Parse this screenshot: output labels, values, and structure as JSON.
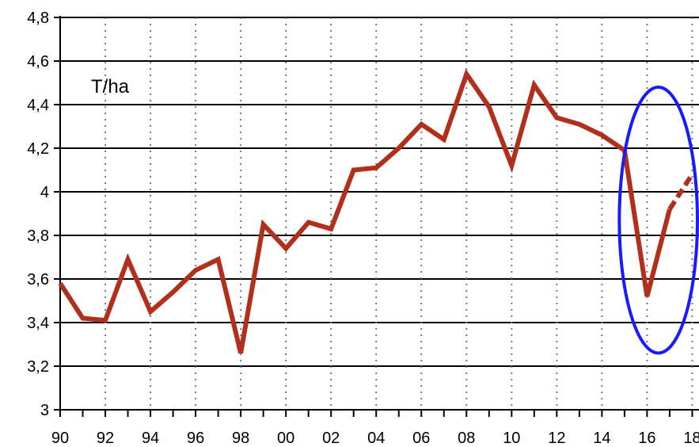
{
  "chart_data": {
    "type": "line",
    "unit_label": "T/ha",
    "xlim": [
      1990,
      2018.3
    ],
    "ylim": [
      3,
      4.8
    ],
    "y_ticks": [
      {
        "value": 3.0,
        "label": "3"
      },
      {
        "value": 3.2,
        "label": "3,2"
      },
      {
        "value": 3.4,
        "label": "3,4"
      },
      {
        "value": 3.6,
        "label": "3,6"
      },
      {
        "value": 3.8,
        "label": "3,8"
      },
      {
        "value": 4.0,
        "label": "4"
      },
      {
        "value": 4.2,
        "label": "4,2"
      },
      {
        "value": 4.4,
        "label": "4,4"
      },
      {
        "value": 4.6,
        "label": "4,6"
      },
      {
        "value": 4.8,
        "label": "4,8"
      }
    ],
    "x_ticks": [
      {
        "value": 1990,
        "label": "90"
      },
      {
        "value": 1992,
        "label": "92"
      },
      {
        "value": 1994,
        "label": "94"
      },
      {
        "value": 1996,
        "label": "96"
      },
      {
        "value": 1998,
        "label": "98"
      },
      {
        "value": 2000,
        "label": "00"
      },
      {
        "value": 2002,
        "label": "02"
      },
      {
        "value": 2004,
        "label": "04"
      },
      {
        "value": 2006,
        "label": "06"
      },
      {
        "value": 2008,
        "label": "08"
      },
      {
        "value": 2010,
        "label": "10"
      },
      {
        "value": 2012,
        "label": "12"
      },
      {
        "value": 2014,
        "label": "14"
      },
      {
        "value": 2016,
        "label": "16"
      },
      {
        "value": 2018,
        "label": "18"
      }
    ],
    "grid": {
      "horizontal": "solid",
      "vertical": "dotted"
    },
    "series": [
      {
        "color": "#b22f1c",
        "points": [
          [
            1990,
            3.58
          ],
          [
            1991,
            3.42
          ],
          [
            1992,
            3.41
          ],
          [
            1993,
            3.69
          ],
          [
            1994,
            3.45
          ],
          [
            1995,
            3.54
          ],
          [
            1996,
            3.64
          ],
          [
            1997,
            3.69
          ],
          [
            1998,
            3.26
          ],
          [
            1999,
            3.85
          ],
          [
            2000,
            3.74
          ],
          [
            2001,
            3.86
          ],
          [
            2002,
            3.83
          ],
          [
            2003,
            4.1
          ],
          [
            2004,
            4.11
          ],
          [
            2005,
            4.2
          ],
          [
            2006,
            4.31
          ],
          [
            2007,
            4.24
          ],
          [
            2008,
            4.54
          ],
          [
            2009,
            4.39
          ],
          [
            2010,
            4.12
          ],
          [
            2011,
            4.49
          ],
          [
            2012,
            4.34
          ],
          [
            2013,
            4.31
          ],
          [
            2014,
            4.26
          ],
          [
            2015,
            4.19
          ],
          [
            2016,
            3.52
          ],
          [
            2017,
            3.92
          ]
        ]
      },
      {
        "color": "#b22f1c",
        "style": "dashed",
        "points": [
          [
            2017,
            3.92
          ],
          [
            2018,
            4.08
          ]
        ]
      }
    ],
    "annotations": [
      {
        "type": "ellipse",
        "color": "#1a1aff",
        "cx": 2016.5,
        "cy": 3.87,
        "rx": 2.45,
        "ry": 0.61
      }
    ]
  }
}
